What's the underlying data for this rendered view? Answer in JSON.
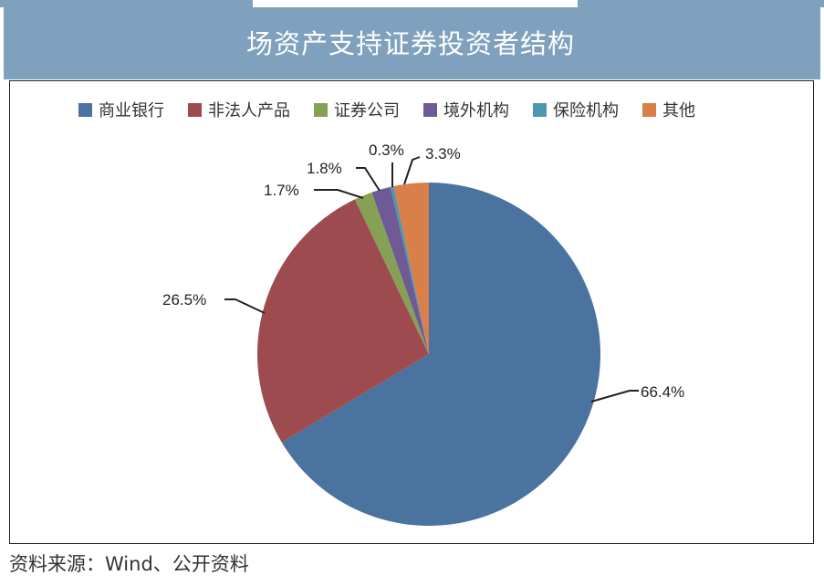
{
  "header": {
    "title": "场资产支持证券投资者结构"
  },
  "legend": {
    "items": [
      {
        "label": "商业银行",
        "color": "#4a73a0"
      },
      {
        "label": "非法人产品",
        "color": "#9e4b4f"
      },
      {
        "label": "证券公司",
        "color": "#86a055"
      },
      {
        "label": "境外机构",
        "color": "#6e5a95"
      },
      {
        "label": "保险机构",
        "color": "#4a98b0"
      },
      {
        "label": "其他",
        "color": "#d97f4a"
      }
    ]
  },
  "labels": {
    "commercial_banks": "66.4%",
    "non_legal_products": "26.5%",
    "securities_firms": "1.7%",
    "foreign_institutions": "1.8%",
    "insurance": "0.3%",
    "others": "3.3%"
  },
  "footer": {
    "source": "资料来源：Wind、公开资料"
  },
  "chart_data": {
    "type": "pie",
    "title": "场资产支持证券投资者结构",
    "categories": [
      "商业银行",
      "非法人产品",
      "证券公司",
      "境外机构",
      "保险机构",
      "其他"
    ],
    "values": [
      66.4,
      26.5,
      1.7,
      1.8,
      0.3,
      3.3
    ],
    "unit": "%",
    "colors": [
      "#4a73a0",
      "#9e4b4f",
      "#86a055",
      "#6e5a95",
      "#4a98b0",
      "#d97f4a"
    ],
    "start_angle": "12 o'clock",
    "direction": "clockwise",
    "legend_position": "top",
    "source": "资料来源：Wind、公开资料"
  }
}
